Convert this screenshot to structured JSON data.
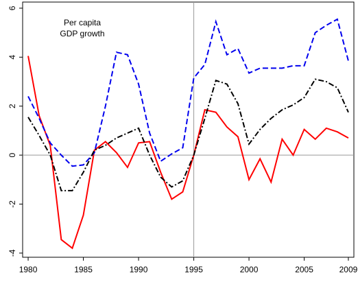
{
  "chart_data": {
    "type": "line",
    "annotation": [
      "Per capita",
      "GDP growth"
    ],
    "x": [
      1980,
      1981,
      1982,
      1983,
      1984,
      1985,
      1986,
      1987,
      1988,
      1989,
      1990,
      1991,
      1992,
      1993,
      1994,
      1995,
      1996,
      1997,
      1998,
      1999,
      2000,
      2001,
      2002,
      2003,
      2004,
      2005,
      2006,
      2007,
      2008,
      2009
    ],
    "series": [
      {
        "color": "#ff0000",
        "dash": "solid",
        "values": [
          4.05,
          1.6,
          0.4,
          -3.45,
          -3.8,
          -2.45,
          0.2,
          0.55,
          0.1,
          -0.5,
          0.5,
          0.55,
          -0.7,
          -1.8,
          -1.5,
          0.0,
          1.85,
          1.75,
          1.15,
          0.75,
          -1.0,
          -0.15,
          -1.1,
          0.65,
          0.0,
          1.05,
          0.65,
          1.1,
          0.95,
          0.7
        ]
      },
      {
        "color": "#0000ee",
        "dash": "dashed",
        "values": [
          2.4,
          1.5,
          0.5,
          0.0,
          -0.45,
          -0.4,
          0.1,
          2.0,
          4.2,
          4.1,
          2.9,
          0.9,
          -0.25,
          0.05,
          0.3,
          3.15,
          3.7,
          5.45,
          4.1,
          4.35,
          3.35,
          3.55,
          3.55,
          3.55,
          3.65,
          3.65,
          5.0,
          5.3,
          5.55,
          3.85
        ]
      },
      {
        "color": "#000000",
        "dash": "dashdot",
        "values": [
          1.55,
          0.8,
          0.0,
          -1.45,
          -1.45,
          -0.7,
          0.2,
          0.4,
          0.7,
          0.9,
          1.1,
          0.0,
          -0.9,
          -1.3,
          -1.05,
          0.0,
          1.5,
          3.05,
          2.9,
          2.1,
          0.45,
          1.05,
          1.5,
          1.85,
          2.05,
          2.35,
          3.1,
          3.0,
          2.75,
          1.75
        ]
      }
    ],
    "xlim": [
      1979.5,
      2009.5
    ],
    "xticks": [
      1980,
      1985,
      1990,
      1995,
      2000,
      2005,
      2009
    ],
    "ylim": [
      -4.17,
      6.25
    ],
    "yticks": [
      -4,
      -2,
      0,
      2,
      4,
      6
    ],
    "hline": 0,
    "vline": 1995
  }
}
